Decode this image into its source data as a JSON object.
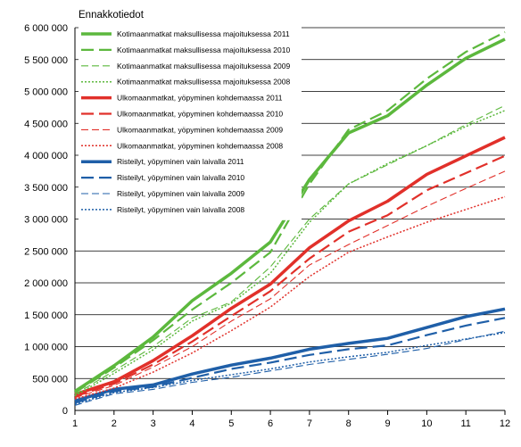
{
  "chart_data": {
    "type": "line",
    "title": "Ennakkotiedot",
    "xlabel": "",
    "ylabel": "",
    "x": [
      1,
      2,
      3,
      4,
      5,
      6,
      7,
      8,
      9,
      10,
      11,
      12
    ],
    "xlim": [
      1,
      12
    ],
    "ylim": [
      0,
      6000000
    ],
    "yticks": [
      0,
      500000,
      1000000,
      1500000,
      2000000,
      2500000,
      3000000,
      3500000,
      4000000,
      4500000,
      5000000,
      5500000,
      6000000
    ],
    "ytick_labels": [
      "0",
      "500 000",
      "1 000 000",
      "1 500 000",
      "2 000 000",
      "2 500 000",
      "3 000 000",
      "3 500 000",
      "4 000 000",
      "4 500 000",
      "5 000 000",
      "5 500 000",
      "6 000 000"
    ],
    "xtick_labels": [
      "1",
      "2",
      "3",
      "4",
      "5",
      "6",
      "7",
      "8",
      "9",
      "10",
      "11",
      "12"
    ],
    "grid": "horizontal",
    "legend_position": "top-left",
    "series": [
      {
        "name": "Kotimaanmatkat maksullisessa majoituksessa 2011",
        "color": "#5cb83d",
        "style": "solid",
        "width": 3.5,
        "values": [
          300000,
          700000,
          1150000,
          1720000,
          2150000,
          2640000,
          3620000,
          4350000,
          4620000,
          5100000,
          5520000,
          5820000
        ]
      },
      {
        "name": "Kotimaanmatkat maksullisessa majoituksessa 2010",
        "color": "#5cb83d",
        "style": "longdash",
        "width": 2.2,
        "values": [
          280000,
          670000,
          1100000,
          1580000,
          2000000,
          2480000,
          3550000,
          4400000,
          4700000,
          5200000,
          5620000,
          5930000
        ]
      },
      {
        "name": "Kotimaanmatkat maksullisessa majoituksessa 2009",
        "color": "#5cb83d",
        "style": "dash",
        "width": 1.1,
        "values": [
          250000,
          620000,
          1000000,
          1450000,
          1700000,
          2250000,
          3000000,
          3550000,
          3850000,
          4150000,
          4480000,
          4780000
        ]
      },
      {
        "name": "Kotimaanmatkat maksullisessa majoituksessa 2008",
        "color": "#5cb83d",
        "style": "dot",
        "width": 1.5,
        "values": [
          230000,
          580000,
          950000,
          1400000,
          1680000,
          2150000,
          2950000,
          3550000,
          3870000,
          4150000,
          4450000,
          4700000
        ]
      },
      {
        "name": "Ulkomaanmatkat, yöpyminen kohdemaassa 2011",
        "color": "#e1302a",
        "style": "solid",
        "width": 3.5,
        "values": [
          250000,
          450000,
          780000,
          1170000,
          1600000,
          1980000,
          2550000,
          2970000,
          3280000,
          3700000,
          3990000,
          4280000
        ]
      },
      {
        "name": "Ulkomaanmatkat, yöpyminen kohdemaassa 2010",
        "color": "#e1302a",
        "style": "longdash",
        "width": 2.2,
        "values": [
          220000,
          420000,
          720000,
          1080000,
          1480000,
          1870000,
          2380000,
          2800000,
          3060000,
          3450000,
          3720000,
          3990000
        ]
      },
      {
        "name": "Ulkomaanmatkat, yöpyminen kohdemaassa 2009",
        "color": "#e1302a",
        "style": "dash",
        "width": 1.1,
        "values": [
          200000,
          390000,
          680000,
          1000000,
          1400000,
          1750000,
          2280000,
          2600000,
          2900000,
          3200000,
          3480000,
          3750000
        ]
      },
      {
        "name": "Ulkomaanmatkat, yöpyminen kohdemaassa 2008",
        "color": "#e1302a",
        "style": "dot",
        "width": 1.5,
        "values": [
          180000,
          350000,
          600000,
          900000,
          1250000,
          1620000,
          2100000,
          2480000,
          2720000,
          2950000,
          3150000,
          3350000
        ]
      },
      {
        "name": "Risteilyt, yöpyminen vain laivalla 2011",
        "color": "#1f5fa8",
        "style": "solid",
        "width": 3.5,
        "values": [
          150000,
          330000,
          400000,
          570000,
          710000,
          820000,
          960000,
          1050000,
          1130000,
          1300000,
          1470000,
          1590000
        ]
      },
      {
        "name": "Risteilyt, yöpyminen vain laivalla 2010",
        "color": "#1f5fa8",
        "style": "longdash",
        "width": 2.2,
        "values": [
          120000,
          300000,
          370000,
          510000,
          650000,
          750000,
          870000,
          960000,
          1020000,
          1180000,
          1330000,
          1450000
        ]
      },
      {
        "name": "Risteilyt, yöpyminen vain laivalla 2009",
        "color": "#1f5fa8",
        "style": "dash",
        "width": 1.1,
        "values": [
          80000,
          260000,
          330000,
          440000,
          520000,
          620000,
          720000,
          800000,
          880000,
          970000,
          1110000,
          1240000
        ]
      },
      {
        "name": "Risteilyt, yöpyminen vain laivalla 2008",
        "color": "#1f5fa8",
        "style": "dot",
        "width": 1.5,
        "values": [
          100000,
          280000,
          360000,
          470000,
          560000,
          650000,
          760000,
          840000,
          910000,
          1020000,
          1120000,
          1220000
        ]
      }
    ]
  }
}
